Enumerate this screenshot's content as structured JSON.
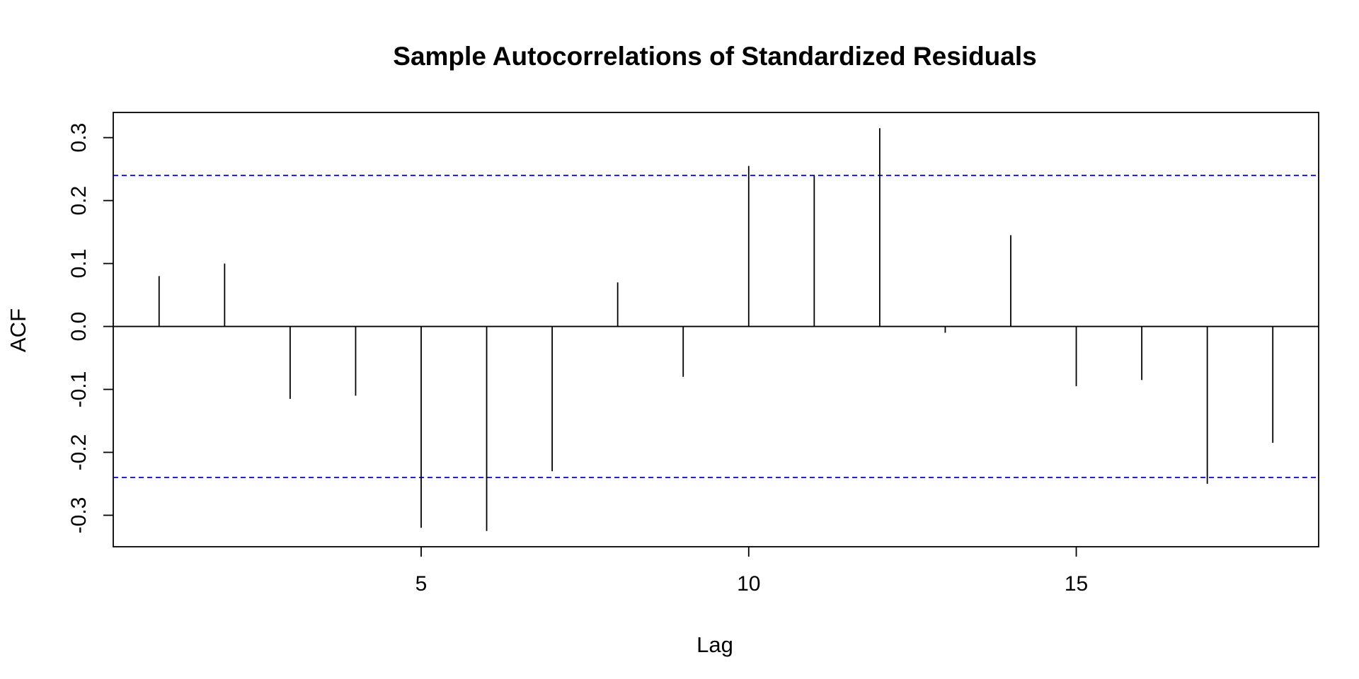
{
  "chart_data": {
    "type": "bar",
    "title": "Sample Autocorrelations of Standardized Residuals",
    "xlabel": "Lag",
    "ylabel": "ACF",
    "x": [
      1,
      2,
      3,
      4,
      5,
      6,
      7,
      8,
      9,
      10,
      11,
      12,
      13,
      14,
      15,
      16,
      17,
      18
    ],
    "values": [
      0.08,
      0.1,
      -0.115,
      -0.11,
      -0.32,
      -0.325,
      -0.23,
      0.07,
      -0.08,
      0.255,
      0.24,
      0.315,
      -0.01,
      0.145,
      -0.095,
      -0.085,
      -0.25,
      -0.185
    ],
    "confidence_bounds": [
      0.24,
      -0.24
    ],
    "xlim": [
      0.3,
      18.7
    ],
    "ylim": [
      -0.35,
      0.34
    ],
    "x_ticks": [
      5,
      10,
      15
    ],
    "x_tick_labels": [
      "5",
      "10",
      "15"
    ],
    "y_ticks": [
      -0.3,
      -0.2,
      -0.1,
      0.0,
      0.1,
      0.2,
      0.3
    ],
    "y_tick_labels": [
      "-0.3",
      "-0.2",
      "-0.1",
      "0.0",
      "0.1",
      "0.2",
      "0.3"
    ],
    "grid": false,
    "colors": {
      "bars": "#000000",
      "bounds": "#0000ff",
      "zero_line": "#000000"
    }
  }
}
